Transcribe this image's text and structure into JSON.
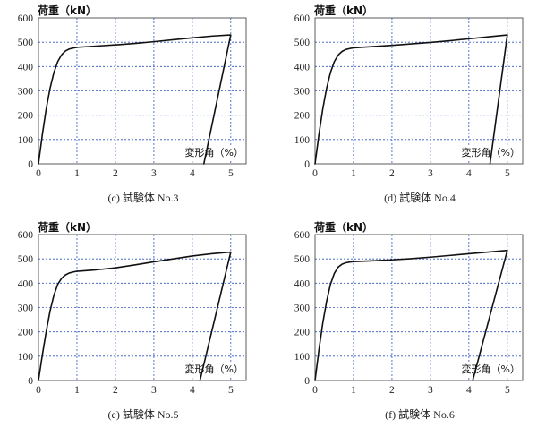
{
  "colors": {
    "curve": "#111111",
    "grid": "#2f55c4",
    "frame": "#4a4a4a",
    "label_background": "#ffffff"
  },
  "chart_data": [
    {
      "type": "line",
      "caption": "(c) 試験体 No.3",
      "ylabel": "荷重（kN）",
      "xlabel": "変形角（%）",
      "xlim": [
        0,
        5.4
      ],
      "ylim": [
        0,
        600
      ],
      "xticks": [
        0,
        1,
        2,
        3,
        4,
        5
      ],
      "yticks": [
        0,
        100,
        200,
        300,
        400,
        500,
        600
      ],
      "grid": true,
      "series": [
        {
          "x": [
            0,
            0.1,
            0.2,
            0.3,
            0.4,
            0.5,
            0.6,
            0.7,
            0.8,
            0.9,
            1.0,
            1.5,
            2.0,
            2.5,
            3.0,
            3.5,
            4.0,
            4.5,
            5.0,
            4.3
          ],
          "y": [
            0,
            120,
            225,
            310,
            375,
            420,
            448,
            464,
            472,
            476,
            479,
            484,
            489,
            495,
            502,
            510,
            518,
            525,
            530,
            0
          ]
        }
      ]
    },
    {
      "type": "line",
      "caption": "(d) 試験体 No.4",
      "ylabel": "荷重（kN）",
      "xlabel": "変形角（%）",
      "xlim": [
        0,
        5.4
      ],
      "ylim": [
        0,
        600
      ],
      "xticks": [
        0,
        1,
        2,
        3,
        4,
        5
      ],
      "yticks": [
        0,
        100,
        200,
        300,
        400,
        500,
        600
      ],
      "grid": true,
      "series": [
        {
          "x": [
            0,
            0.1,
            0.2,
            0.3,
            0.4,
            0.5,
            0.6,
            0.7,
            0.8,
            0.9,
            1.0,
            1.5,
            2.0,
            2.5,
            3.0,
            3.5,
            4.0,
            4.5,
            5.0,
            4.55
          ],
          "y": [
            0,
            120,
            225,
            310,
            375,
            420,
            447,
            462,
            470,
            474,
            477,
            482,
            487,
            493,
            499,
            506,
            514,
            522,
            530,
            0
          ]
        }
      ]
    },
    {
      "type": "line",
      "caption": "(e) 試験体 No.5",
      "ylabel": "荷重（kN）",
      "xlabel": "変形角（%）",
      "xlim": [
        0,
        5.4
      ],
      "ylim": [
        0,
        600
      ],
      "xticks": [
        0,
        1,
        2,
        3,
        4,
        5
      ],
      "yticks": [
        0,
        100,
        200,
        300,
        400,
        500,
        600
      ],
      "grid": true,
      "series": [
        {
          "x": [
            0,
            0.1,
            0.2,
            0.3,
            0.4,
            0.5,
            0.6,
            0.7,
            0.8,
            0.9,
            1.0,
            1.5,
            2.0,
            2.5,
            3.0,
            3.5,
            4.0,
            4.5,
            5.0,
            4.2
          ],
          "y": [
            0,
            105,
            200,
            285,
            350,
            395,
            420,
            434,
            442,
            446,
            449,
            455,
            463,
            475,
            488,
            500,
            512,
            521,
            528,
            0
          ]
        }
      ]
    },
    {
      "type": "line",
      "caption": "(f) 試験体 No.6",
      "ylabel": "荷重（kN）",
      "xlabel": "変形角（%）",
      "xlim": [
        0,
        5.4
      ],
      "ylim": [
        0,
        600
      ],
      "xticks": [
        0,
        1,
        2,
        3,
        4,
        5
      ],
      "yticks": [
        0,
        100,
        200,
        300,
        400,
        500,
        600
      ],
      "grid": true,
      "series": [
        {
          "x": [
            0,
            0.1,
            0.2,
            0.3,
            0.4,
            0.5,
            0.6,
            0.7,
            0.8,
            0.9,
            1.0,
            1.5,
            2.0,
            2.5,
            3.0,
            3.5,
            4.0,
            4.5,
            5.0,
            4.1
          ],
          "y": [
            0,
            125,
            235,
            325,
            395,
            440,
            466,
            478,
            484,
            487,
            489,
            492,
            496,
            501,
            507,
            514,
            521,
            528,
            535,
            0
          ]
        }
      ]
    }
  ]
}
